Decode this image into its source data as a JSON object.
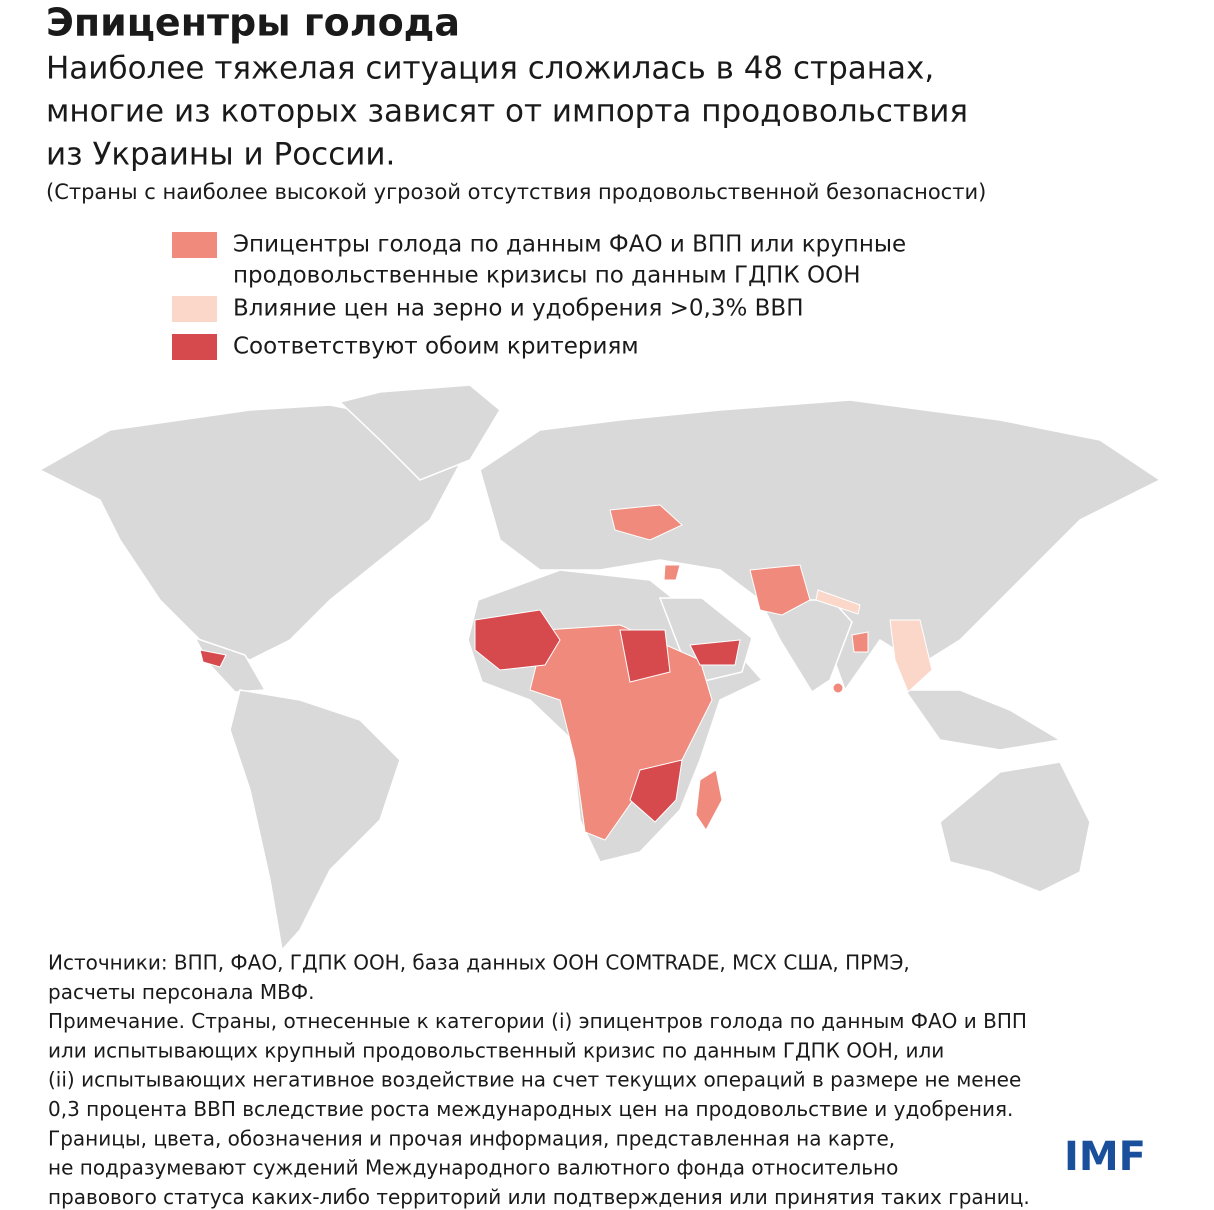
{
  "header": {
    "title": "Эпицентры голода",
    "subtitle_lines": [
      "Наиболее тяжелая ситуация сложилась в 48 странах,",
      "многие из которых зависят от импорта продовольствия",
      "из Украины и России."
    ],
    "note": "(Страны с наиболее высокой угрозой отсутствия продовольственной безопасности)"
  },
  "legend": [
    {
      "lines": [
        "Эпицентры голода по данным ФАО и ВПП или крупные",
        "продовольственные кризисы по данным ГДПК ООН"
      ],
      "color": "#f08a7c"
    },
    {
      "lines": [
        "Влияние цен на зерно и удобрения >0,3% ВВП"
      ],
      "color": "#fbd7ca"
    },
    {
      "lines": [
        "Соответствуют обоим критериям"
      ],
      "color": "#d64a4e"
    }
  ],
  "footer": {
    "lines": [
      "Источники: ВПП, ФАО, ГДПК ООН, база данных ООН COMTRADE, МСХ США, ПРМЭ,",
      "расчеты персонала МВФ.",
      "Примечание. Страны, отнесенные к категории (i) эпицентров голода по данным ФАО и ВПП",
      "или испытывающих крупный продовольственный кризис по данным ГДПК ООН, или",
      "(ii) испытывающих негативное воздействие на счет текущих операций в размере не менее",
      "0,3 процента ВВП вследствие роста международных цен на продовольствие и удобрения.",
      "Границы, цвета, обозначения и прочая информация, представленная на карте,",
      "не подразумевают суждений Международного валютного фонда относительно",
      "правового статуса каких-либо территорий или подтверждения или принятия таких границ."
    ],
    "logo": "IMF"
  }
}
